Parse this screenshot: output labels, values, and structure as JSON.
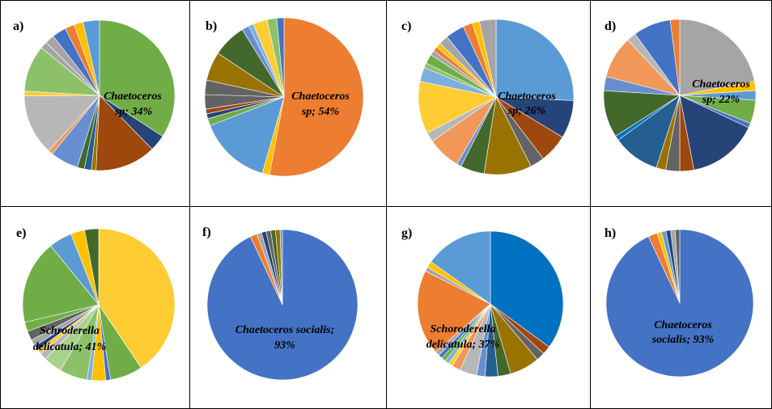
{
  "figure": {
    "palette": [
      "#4472C4",
      "#ED7D31",
      "#A5A5A5",
      "#FFC000",
      "#5B9BD5",
      "#70AD47",
      "#264478",
      "#9E480E",
      "#636363",
      "#997300",
      "#255E91",
      "#43682B",
      "#698ED0",
      "#F1975A",
      "#B7B7B7",
      "#FFCD33",
      "#7CAFDD",
      "#8CC168",
      "#0070C0",
      "#385723"
    ]
  },
  "chart_data": [
    {
      "panel": "a)",
      "type": "pie",
      "annotation": [
        "Chaetoceros",
        "sp; 34%"
      ],
      "highlight_index": 0,
      "values": [
        34,
        3.5,
        13,
        1,
        1.5,
        1.5,
        6,
        1,
        13,
        1,
        10,
        1.5,
        2,
        3,
        2,
        2,
        3.5
      ],
      "colors": [
        "#70AD47",
        "#264478",
        "#9E480E",
        "#997300",
        "#255E91",
        "#43682B",
        "#698ED0",
        "#F1975A",
        "#B7B7B7",
        "#FFCD33",
        "#8CC168",
        "#A5A5A5",
        "#A5A5A5",
        "#4472C4",
        "#ED7D31",
        "#FFC000",
        "#5B9BD5"
      ],
      "annotation_color": "#000000"
    },
    {
      "panel": "b)",
      "type": "pie",
      "annotation": [
        "Chaetoceros",
        "sp; 54%"
      ],
      "highlight_index": 0,
      "values": [
        54,
        1.5,
        15,
        1.5,
        1,
        1,
        3,
        3,
        6,
        7,
        1.5,
        1,
        3,
        2,
        1.5
      ],
      "colors": [
        "#ED7D31",
        "#FFC000",
        "#5B9BD5",
        "#70AD47",
        "#264478",
        "#9E480E",
        "#636363",
        "#636363",
        "#997300",
        "#43682B",
        "#698ED0",
        "#7CAFDD",
        "#FFCD33",
        "#8CC168",
        "#4472C4"
      ],
      "annotation_color": "#000000"
    },
    {
      "panel": "c)",
      "type": "pie",
      "annotation": [
        "Chaetoceros",
        "sp; 26%"
      ],
      "highlight_index": 0,
      "values": [
        26,
        8,
        6,
        3,
        10,
        5,
        1,
        7,
        2,
        11,
        3,
        1,
        2,
        1,
        1,
        1,
        2,
        4,
        2,
        1.5,
        3.5
      ],
      "colors": [
        "#5B9BD5",
        "#264478",
        "#9E480E",
        "#636363",
        "#997300",
        "#43682B",
        "#698ED0",
        "#F1975A",
        "#B7B7B7",
        "#FFCD33",
        "#7CAFDD",
        "#8CC168",
        "#70AD47",
        "#A5A5A5",
        "#ED7D31",
        "#FFC000",
        "#A5A5A5",
        "#4472C4",
        "#ED7D31",
        "#FFC000",
        "#A5A5A5"
      ],
      "annotation_color": "#000000"
    },
    {
      "panel": "d)",
      "type": "pie",
      "annotation": [
        "Chaetoceros",
        "sp; 22%"
      ],
      "highlight_index": 0,
      "values": [
        22,
        2,
        2,
        5,
        1,
        15,
        3,
        3,
        2,
        10,
        1,
        10,
        3,
        9,
        2,
        8,
        2
      ],
      "colors": [
        "#A5A5A5",
        "#FFC000",
        "#5B9BD5",
        "#70AD47",
        "#4472C4",
        "#264478",
        "#9E480E",
        "#636363",
        "#997300",
        "#255E91",
        "#0070C0",
        "#43682B",
        "#698ED0",
        "#F1975A",
        "#B7B7B7",
        "#4472C4",
        "#ED7D31"
      ],
      "annotation_color": "#000000"
    },
    {
      "panel": "e)",
      "type": "pie",
      "annotation": [
        "Schroderella",
        "delicatula; 41%"
      ],
      "highlight_index": 0,
      "values": [
        41,
        7,
        1,
        3,
        1,
        6,
        4,
        1.5,
        1,
        1,
        1.5,
        2,
        2,
        18,
        5,
        3,
        3
      ],
      "colors": [
        "#FFCD33",
        "#70AD47",
        "#4472C4",
        "#FFC000",
        "#7CAFDD",
        "#8CC168",
        "#A9D18E",
        "#B7B7B7",
        "#FFCD33",
        "#264478",
        "#A5A5A5",
        "#636363",
        "#70AD47",
        "#70AD47",
        "#5B9BD5",
        "#FFC000",
        "#43682B"
      ],
      "annotation_color": "#000000"
    },
    {
      "panel": "f)",
      "type": "pie",
      "annotation": [
        "Chaetoceros socialis;",
        "93%"
      ],
      "highlight_index": 0,
      "values": [
        93,
        1.5,
        1,
        1,
        1,
        1,
        1,
        0.5
      ],
      "colors": [
        "#4472C4",
        "#ED7D31",
        "#A5A5A5",
        "#264478",
        "#636363",
        "#43682B",
        "#997300",
        "#5B9BD5"
      ],
      "annotation_color": "#000000"
    },
    {
      "panel": "g)",
      "type": "pie",
      "annotation": [
        "Schoroderella",
        "delicatula; 37%"
      ],
      "highlight_index": 0,
      "values": [
        37,
        2,
        2,
        7,
        3,
        3,
        2,
        4,
        2,
        1,
        1,
        1,
        1,
        1,
        20,
        1,
        1.5,
        16
      ],
      "colors": [
        "#0070C0",
        "#9E480E",
        "#636363",
        "#997300",
        "#43682B",
        "#255E91",
        "#698ED0",
        "#B7B7B7",
        "#F1975A",
        "#FFCD33",
        "#7CAFDD",
        "#70AD47",
        "#4472C4",
        "#A5A5A5",
        "#ED7D31",
        "#A5A5A5",
        "#FFC000",
        "#5B9BD5"
      ],
      "annotation_color": "#000000"
    },
    {
      "panel": "h)",
      "type": "pie",
      "annotation": [
        "Chaetoceros",
        "socialis; 93%"
      ],
      "highlight_index": 0,
      "values": [
        93,
        2,
        1,
        1,
        1,
        1,
        1
      ],
      "colors": [
        "#4472C4",
        "#ED7D31",
        "#FFC000",
        "#5B9BD5",
        "#264478",
        "#A5A5A5",
        "#636363"
      ],
      "annotation_color": "#000000"
    }
  ]
}
